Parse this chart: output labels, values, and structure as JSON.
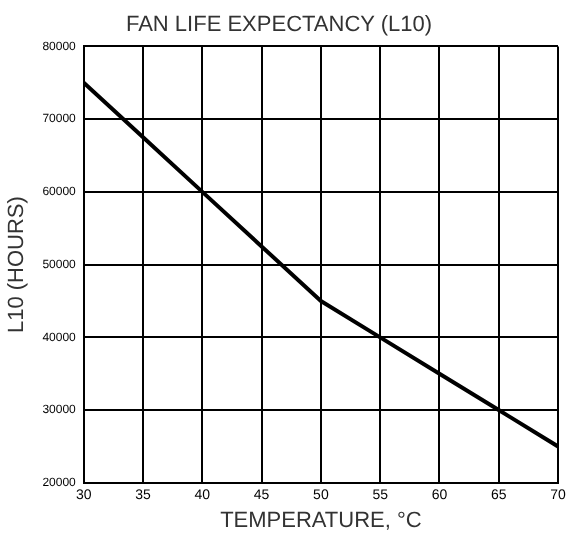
{
  "chart_data": {
    "type": "line",
    "title": "FAN LIFE EXPECTANCY (L10)",
    "xlabel": "TEMPERATURE, °C",
    "ylabel": "L10 (HOURS)",
    "x": [
      30,
      35,
      40,
      45,
      50,
      55,
      60,
      65,
      70
    ],
    "series": [
      {
        "color": "#000000",
        "values": [
          75000,
          67500,
          60000,
          52500,
          45000,
          40000,
          35000,
          30000,
          25000
        ]
      }
    ],
    "xlim": [
      30,
      70
    ],
    "xticks": [
      30,
      35,
      40,
      45,
      50,
      55,
      60,
      65,
      70
    ],
    "ylim": [
      20000,
      80000
    ],
    "yticks": [
      20000,
      30000,
      40000,
      50000,
      60000,
      70000,
      80000
    ],
    "grid": true,
    "legend": false,
    "marker": "none",
    "line_style": "solid"
  }
}
